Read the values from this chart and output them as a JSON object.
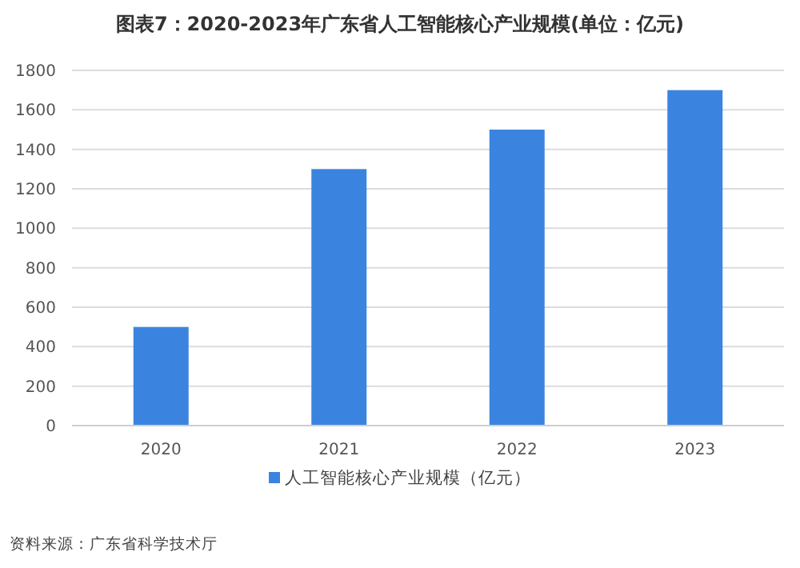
{
  "chart_data": {
    "type": "bar",
    "title": "图表7：2020-2023年广东省人工智能核心产业规模(单位：亿元)",
    "categories": [
      "2020",
      "2021",
      "2022",
      "2023"
    ],
    "series": [
      {
        "name": "人工智能核心产业规模（亿元）",
        "color": "#3a84e0",
        "values": [
          500,
          1300,
          1500,
          1700
        ]
      }
    ],
    "ylim": [
      0,
      1800
    ],
    "yticks": [
      0,
      200,
      400,
      600,
      800,
      1000,
      1200,
      1400,
      1600,
      1800
    ],
    "grid": "y",
    "legend": "bottom",
    "annotations": [
      "资料来源：广东省科学技术厅"
    ]
  }
}
